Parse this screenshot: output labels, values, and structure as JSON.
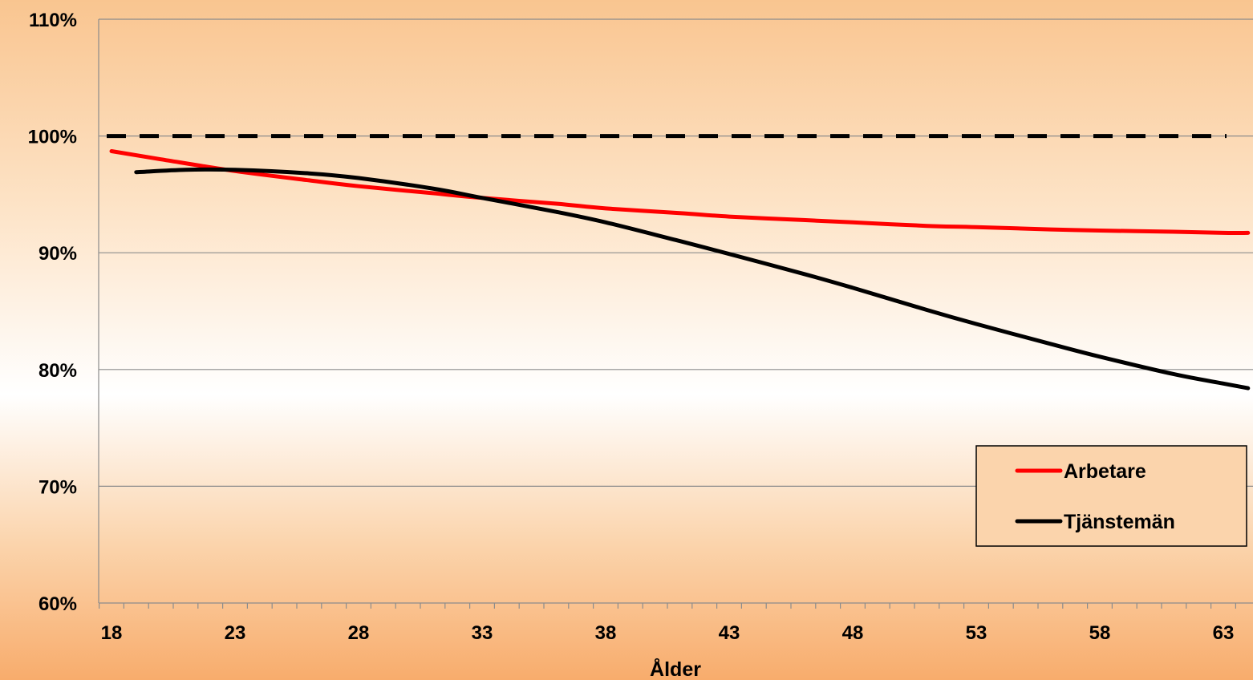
{
  "chart_data": {
    "type": "line",
    "xlabel": "Ålder",
    "ylabel": "",
    "xlim": [
      18,
      64
    ],
    "ylim": [
      0.6,
      1.1
    ],
    "x_ticks": [
      18,
      23,
      28,
      33,
      38,
      43,
      48,
      53,
      58,
      63
    ],
    "y_ticks": [
      {
        "value": 0.6,
        "label": "60%"
      },
      {
        "value": 0.7,
        "label": "70%"
      },
      {
        "value": 0.8,
        "label": "80%"
      },
      {
        "value": 0.9,
        "label": "90%"
      },
      {
        "value": 1.0,
        "label": "100%"
      },
      {
        "value": 1.1,
        "label": "110%"
      }
    ],
    "grid": true,
    "legend_position": "bottom-right",
    "reference_line": {
      "value": 1.0,
      "style": "dashed",
      "color": "#000000"
    },
    "series": [
      {
        "name": "Arbetare",
        "color": "#ff0000",
        "x": [
          18,
          20,
          23,
          26,
          28,
          31,
          33,
          36,
          38,
          41,
          43,
          46,
          48,
          51,
          53,
          56,
          58,
          61,
          63,
          64
        ],
        "values": [
          0.987,
          0.98,
          0.97,
          0.962,
          0.957,
          0.951,
          0.947,
          0.942,
          0.938,
          0.934,
          0.931,
          0.928,
          0.926,
          0.923,
          0.922,
          0.92,
          0.919,
          0.918,
          0.917,
          0.917
        ]
      },
      {
        "name": "Tjänstemän",
        "color": "#000000",
        "x": [
          19,
          21,
          23,
          26,
          28,
          31,
          33,
          36,
          38,
          41,
          43,
          46,
          48,
          51,
          53,
          56,
          58,
          61,
          63,
          64
        ],
        "values": [
          0.969,
          0.971,
          0.971,
          0.968,
          0.964,
          0.955,
          0.947,
          0.935,
          0.926,
          0.91,
          0.899,
          0.882,
          0.87,
          0.851,
          0.839,
          0.822,
          0.811,
          0.796,
          0.788,
          0.784
        ]
      }
    ]
  }
}
